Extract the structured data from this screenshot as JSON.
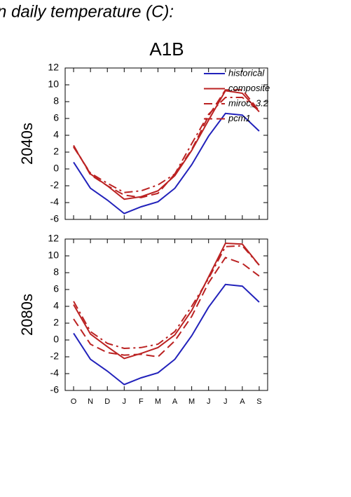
{
  "title": "n daily temperature (C):",
  "chart_data": [
    {
      "type": "line",
      "title": "A1B",
      "ylabel": "2040s",
      "ylim": [
        -6,
        12
      ],
      "yticks": [
        -6,
        -4,
        -2,
        0,
        2,
        4,
        6,
        8,
        10,
        12
      ],
      "legend": "top-right",
      "series": [
        {
          "name": "historical",
          "color": "#2222bb",
          "style": "solid",
          "values": [
            0.8,
            -2.3,
            -3.7,
            -5.3,
            -4.5,
            -3.9,
            -2.3,
            0.5,
            3.9,
            6.6,
            6.4,
            4.5
          ]
        },
        {
          "name": "composite",
          "color": "#bb2222",
          "style": "solid",
          "values": [
            2.7,
            -0.6,
            -2.0,
            -3.6,
            -3.3,
            -2.6,
            -0.8,
            2.2,
            5.8,
            9.3,
            9.0,
            6.8
          ]
        },
        {
          "name": "miroc_3.2",
          "color": "#bb2222",
          "style": "dashdot",
          "values": [
            2.6,
            -0.5,
            -1.7,
            -2.8,
            -2.6,
            -1.9,
            -0.6,
            3.0,
            6.5,
            8.5,
            8.5,
            6.9
          ]
        },
        {
          "name": "pcm1",
          "color": "#bb2222",
          "style": "dash",
          "values": [
            2.8,
            -0.7,
            -2.0,
            -3.1,
            -3.4,
            -2.9,
            -0.6,
            2.3,
            6.3,
            9.4,
            9.4,
            6.9
          ]
        }
      ]
    },
    {
      "type": "line",
      "ylabel": "2080s",
      "categories": [
        "O",
        "N",
        "D",
        "J",
        "F",
        "M",
        "A",
        "M",
        "J",
        "J",
        "A",
        "S"
      ],
      "ylim": [
        -6,
        12
      ],
      "yticks": [
        -6,
        -4,
        -2,
        0,
        2,
        4,
        6,
        8,
        10,
        12
      ],
      "series": [
        {
          "color": "#2222bb",
          "style": "solid",
          "values": [
            0.8,
            -2.3,
            -3.7,
            -5.3,
            -4.5,
            -3.9,
            -2.3,
            0.5,
            3.9,
            6.6,
            6.4,
            4.5
          ]
        },
        {
          "color": "#bb2222",
          "style": "solid",
          "values": [
            4.2,
            0.7,
            -0.8,
            -2.2,
            -1.6,
            -0.9,
            0.6,
            3.5,
            7.5,
            11.5,
            11.4,
            8.9
          ]
        },
        {
          "color": "#bb2222",
          "style": "dashdot",
          "values": [
            4.6,
            1.0,
            -0.4,
            -1.0,
            -0.9,
            -0.5,
            1.0,
            4.0,
            7.3,
            11.1,
            11.2,
            8.9
          ]
        },
        {
          "color": "#bb2222",
          "style": "dash",
          "values": [
            2.5,
            -0.5,
            -1.5,
            -1.8,
            -1.7,
            -2.0,
            -0.1,
            2.8,
            6.8,
            9.8,
            9.1,
            7.6
          ]
        }
      ]
    }
  ]
}
